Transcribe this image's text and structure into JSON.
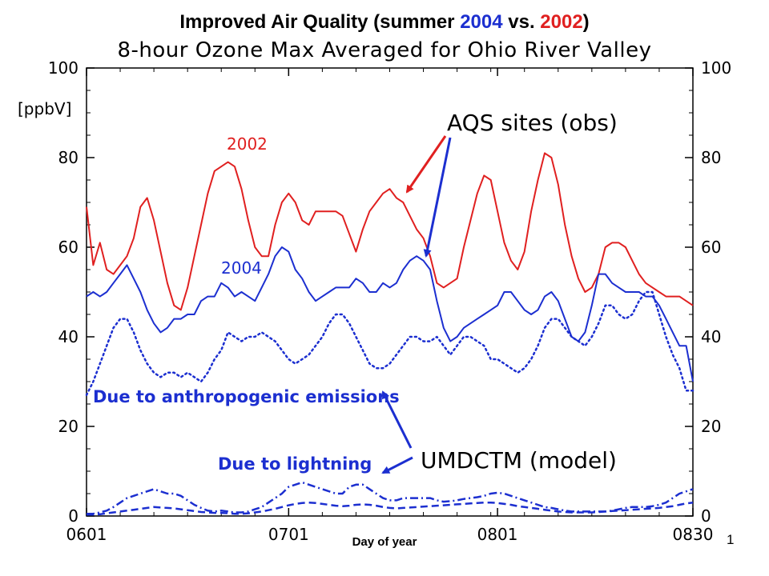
{
  "page": {
    "title_prefix": "Improved  Air  Quality  (summer ",
    "title_year_a": "2004",
    "title_mid": " vs. ",
    "title_year_b": "2002",
    "title_suffix": ")",
    "page_number": "1"
  },
  "colors": {
    "red": "#e02020",
    "blue": "#1c2fd0",
    "black": "#000000"
  },
  "chart_data": {
    "type": "line",
    "title": "8-hour Ozone Max Averaged for Ohio River Valley",
    "xlabel": "Day of year",
    "ylabel": "[ppbV]",
    "ylim": [
      0,
      100
    ],
    "xlim": [
      "0601",
      "0830"
    ],
    "x_ticks": [
      "0601",
      "0701",
      "0801",
      "0830"
    ],
    "y_ticks": [
      0,
      20,
      40,
      60,
      80,
      100
    ],
    "x": [
      "0601",
      "0602",
      "0603",
      "0604",
      "0605",
      "0606",
      "0607",
      "0608",
      "0609",
      "0610",
      "0611",
      "0612",
      "0613",
      "0614",
      "0615",
      "0616",
      "0617",
      "0618",
      "0619",
      "0620",
      "0621",
      "0622",
      "0623",
      "0624",
      "0625",
      "0626",
      "0627",
      "0628",
      "0629",
      "0630",
      "0701",
      "0702",
      "0703",
      "0704",
      "0705",
      "0706",
      "0707",
      "0708",
      "0709",
      "0710",
      "0711",
      "0712",
      "0713",
      "0714",
      "0715",
      "0716",
      "0717",
      "0718",
      "0719",
      "0720",
      "0721",
      "0722",
      "0723",
      "0724",
      "0725",
      "0726",
      "0727",
      "0728",
      "0729",
      "0730",
      "0731",
      "0801",
      "0802",
      "0803",
      "0804",
      "0805",
      "0806",
      "0807",
      "0808",
      "0809",
      "0810",
      "0811",
      "0812",
      "0813",
      "0814",
      "0815",
      "0816",
      "0817",
      "0818",
      "0819",
      "0820",
      "0821",
      "0822",
      "0823",
      "0824",
      "0825",
      "0826",
      "0827",
      "0828",
      "0829",
      "0830"
    ],
    "series": [
      {
        "name": "2002",
        "style": "solid",
        "color": "#e02020",
        "values": [
          69,
          56,
          61,
          55,
          54,
          56,
          58,
          62,
          69,
          71,
          66,
          59,
          52,
          47,
          46,
          51,
          58,
          65,
          72,
          77,
          78,
          79,
          78,
          73,
          66,
          60,
          58,
          58,
          65,
          70,
          72,
          70,
          66,
          65,
          68,
          68,
          68,
          68,
          67,
          63,
          59,
          64,
          68,
          70,
          72,
          73,
          71,
          70,
          67,
          64,
          62,
          58,
          52,
          51,
          52,
          53,
          60,
          66,
          72,
          76,
          75,
          68,
          61,
          57,
          55,
          59,
          68,
          75,
          81,
          80,
          74,
          65,
          58,
          53,
          50,
          51,
          54,
          60,
          61,
          61,
          60,
          57,
          54,
          52,
          51,
          50,
          49,
          49,
          49,
          48,
          47
        ]
      },
      {
        "name": "2004",
        "style": "solid",
        "color": "#1c2fd0",
        "values": [
          49,
          50,
          49,
          50,
          52,
          54,
          56,
          53,
          50,
          46,
          43,
          41,
          42,
          44,
          44,
          45,
          45,
          48,
          49,
          49,
          52,
          51,
          49,
          50,
          49,
          48,
          51,
          54,
          58,
          60,
          59,
          55,
          53,
          50,
          48,
          49,
          50,
          51,
          51,
          51,
          53,
          52,
          50,
          50,
          52,
          51,
          52,
          55,
          57,
          58,
          57,
          55,
          48,
          42,
          39,
          40,
          42,
          43,
          44,
          45,
          46,
          47,
          50,
          50,
          48,
          46,
          45,
          46,
          49,
          50,
          48,
          44,
          40,
          39,
          41,
          47,
          54,
          54,
          52,
          51,
          50,
          50,
          50,
          49,
          49,
          47,
          44,
          41,
          38,
          38,
          30
        ]
      },
      {
        "name": "Due to anthropogenic emissions",
        "style": "dotted",
        "color": "#1c2fd0",
        "values": [
          27,
          30,
          34,
          38,
          42,
          44,
          44,
          41,
          37,
          34,
          32,
          31,
          32,
          32,
          31,
          32,
          31,
          30,
          32,
          35,
          37,
          41,
          40,
          39,
          40,
          40,
          41,
          40,
          39,
          37,
          35,
          34,
          35,
          36,
          38,
          40,
          43,
          45,
          45,
          43,
          40,
          37,
          34,
          33,
          33,
          34,
          36,
          38,
          40,
          40,
          39,
          39,
          40,
          38,
          36,
          38,
          40,
          40,
          39,
          38,
          35,
          35,
          34,
          33,
          32,
          33,
          35,
          38,
          42,
          44,
          44,
          42,
          40,
          39,
          38,
          40,
          43,
          47,
          47,
          45,
          44,
          45,
          48,
          50,
          50,
          45,
          40,
          36,
          33,
          28,
          28
        ]
      },
      {
        "name": "Due to lightning (dash-dot)",
        "style": "dashdot",
        "color": "#1c2fd0",
        "values": [
          0.5,
          0.5,
          0.8,
          1.2,
          2,
          3,
          4,
          4.5,
          5,
          5.5,
          6,
          5.5,
          5,
          5,
          4.5,
          3.5,
          2.5,
          1.8,
          1.2,
          1,
          1.2,
          1,
          0.8,
          0.8,
          1,
          1.5,
          2,
          3,
          4,
          5,
          6.5,
          7,
          7.5,
          7,
          6.5,
          6,
          5.5,
          5,
          5,
          6.5,
          7,
          7,
          6,
          5,
          4,
          3.5,
          3.5,
          4,
          4,
          4,
          4,
          4,
          3.5,
          3.2,
          3.3,
          3.5,
          3.8,
          4,
          4.2,
          4.5,
          5,
          5.2,
          5,
          4.5,
          4,
          3.5,
          3,
          2.5,
          2,
          1.8,
          1.5,
          1.2,
          1,
          1,
          1,
          1,
          1,
          1,
          1.2,
          1.5,
          1.8,
          2,
          2,
          2,
          2.2,
          2.5,
          3,
          4,
          5,
          5.5,
          6
        ]
      },
      {
        "name": "Due to lightning (dashed)",
        "style": "dashed",
        "color": "#1c2fd0",
        "values": [
          0.3,
          0.3,
          0.4,
          0.6,
          0.8,
          1,
          1.2,
          1.4,
          1.6,
          1.8,
          2,
          1.9,
          1.8,
          1.7,
          1.5,
          1.3,
          1.1,
          0.9,
          0.8,
          0.7,
          0.7,
          0.6,
          0.5,
          0.5,
          0.6,
          0.8,
          1,
          1.3,
          1.6,
          2,
          2.4,
          2.7,
          2.9,
          3,
          2.9,
          2.7,
          2.5,
          2.3,
          2.2,
          2.3,
          2.5,
          2.6,
          2.5,
          2.3,
          2,
          1.8,
          1.7,
          1.8,
          1.9,
          2,
          2.1,
          2.2,
          2.3,
          2.4,
          2.5,
          2.6,
          2.7,
          2.8,
          2.9,
          3,
          3,
          2.9,
          2.7,
          2.5,
          2.2,
          2,
          1.8,
          1.6,
          1.4,
          1.2,
          1,
          0.9,
          0.8,
          0.8,
          0.8,
          0.8,
          0.9,
          1,
          1.1,
          1.2,
          1.3,
          1.4,
          1.5,
          1.6,
          1.7,
          1.8,
          2,
          2.2,
          2.5,
          2.8,
          3
        ]
      }
    ],
    "annotations": {
      "label_2002": "2002",
      "label_2004": "2004",
      "aqs": "AQS sites (obs)",
      "anthro": "Due to anthropogenic emissions",
      "umdctm": "UMDCTM (model)",
      "lightning": "Due to lightning"
    },
    "grid": false,
    "legend": "none"
  }
}
